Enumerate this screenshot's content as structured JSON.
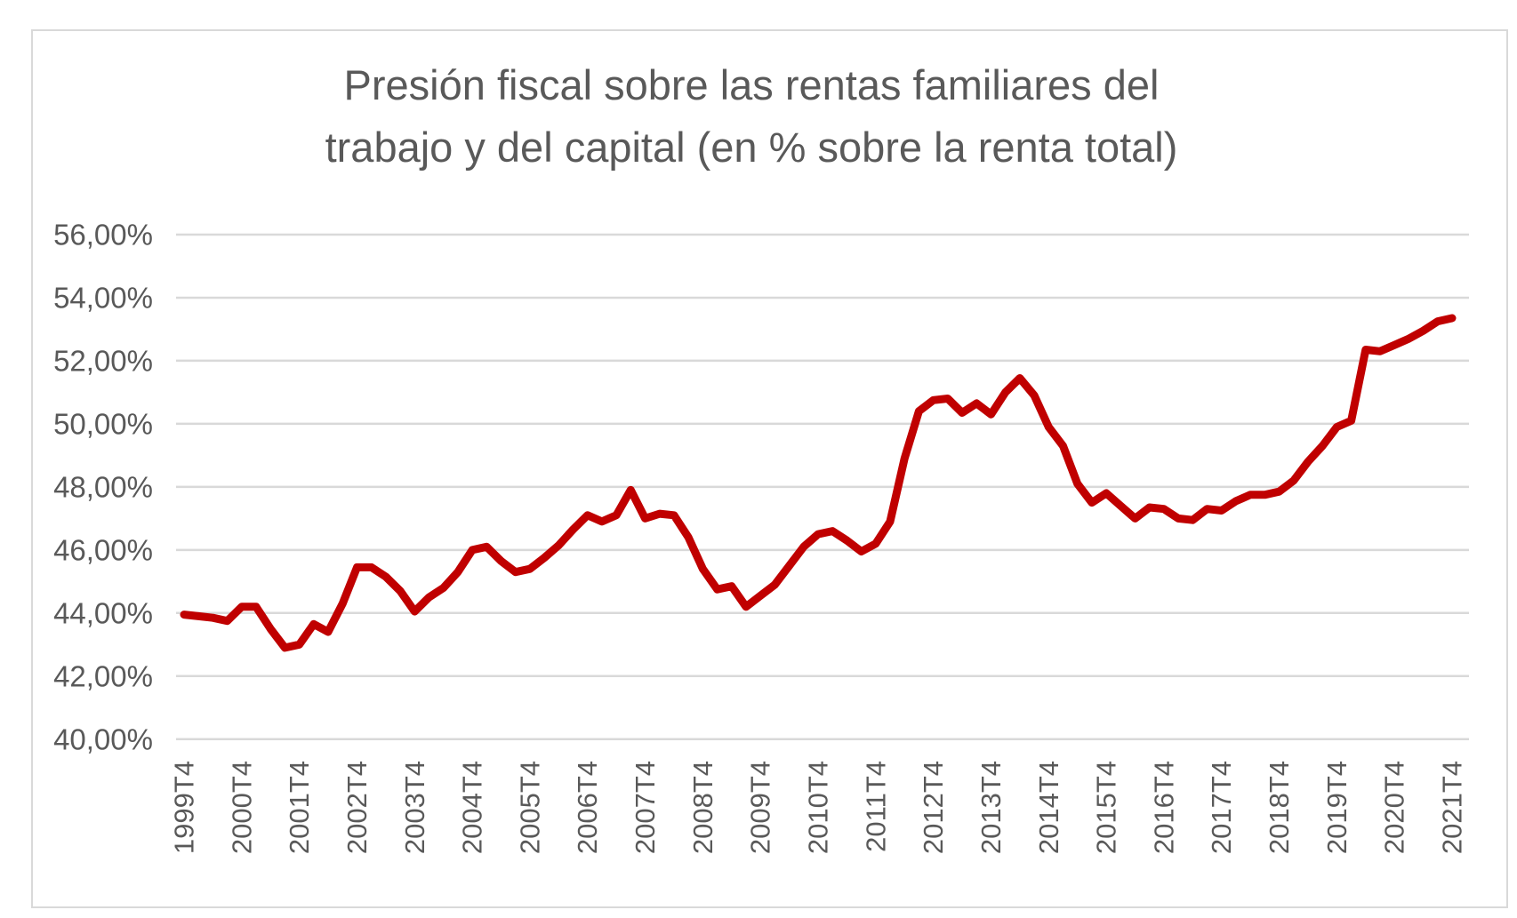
{
  "chart": {
    "title_line1": "Presión fiscal sobre las rentas familiares del",
    "title_line2": "trabajo y del capital (en % sobre la renta total)"
  },
  "colors": {
    "line": "#C00000",
    "grid": "#D9D9D9",
    "frame": "#D9D9D9",
    "text": "#595959",
    "background": "#FFFFFF"
  },
  "chart_data": {
    "type": "line",
    "title": "Presión fiscal sobre las rentas familiares del trabajo y del capital (en % sobre la renta total)",
    "x_start": "1999T4",
    "x_frequency": "quarterly",
    "x_tick_every": 4,
    "x_tick_labels": [
      "1999T4",
      "2000T4",
      "2001T4",
      "2002T4",
      "2003T4",
      "2004T4",
      "2005T4",
      "2006T4",
      "2007T4",
      "2008T4",
      "2009T4",
      "2010T4",
      "2011T4",
      "2012T4",
      "2013T4",
      "2014T4",
      "2015T4",
      "2016T4",
      "2017T4",
      "2018T4",
      "2019T4",
      "2020T4",
      "2021T4"
    ],
    "ylim": [
      40,
      56
    ],
    "ytick_step": 2,
    "y_tick_labels_top_to_bottom": [
      "56,00%",
      "54,00%",
      "52,00%",
      "50,00%",
      "48,00%",
      "46,00%",
      "44,00%",
      "42,00%",
      "40,00%"
    ],
    "grid": true,
    "legend": "none",
    "series": [
      {
        "color": "#C00000",
        "unit": "percent",
        "values": [
          43.95,
          43.9,
          43.85,
          43.75,
          44.2,
          44.2,
          43.5,
          42.9,
          43.0,
          43.65,
          43.4,
          44.3,
          45.45,
          45.45,
          45.15,
          44.7,
          44.05,
          44.5,
          44.8,
          45.3,
          46.0,
          46.1,
          45.65,
          45.3,
          45.4,
          45.75,
          46.15,
          46.65,
          47.1,
          46.9,
          47.1,
          47.9,
          47.0,
          47.15,
          47.1,
          46.4,
          45.4,
          44.75,
          44.85,
          44.2,
          44.55,
          44.9,
          45.5,
          46.1,
          46.5,
          46.6,
          46.3,
          45.95,
          46.2,
          46.9,
          48.9,
          50.4,
          50.75,
          50.8,
          50.35,
          50.65,
          50.3,
          51.0,
          51.45,
          50.9,
          49.9,
          49.3,
          48.1,
          47.5,
          47.8,
          47.4,
          47.0,
          47.35,
          47.3,
          47.0,
          46.95,
          47.3,
          47.25,
          47.55,
          47.75,
          47.75,
          47.85,
          48.2,
          48.8,
          49.3,
          49.9,
          50.1,
          52.35,
          52.3,
          52.5,
          52.7,
          52.95,
          53.25,
          53.35
        ]
      }
    ]
  }
}
